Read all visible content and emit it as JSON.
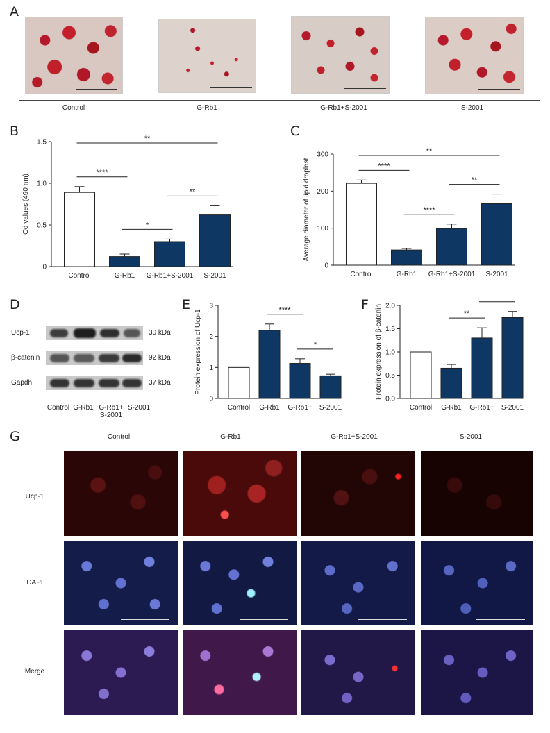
{
  "panel_A": {
    "letter": "A",
    "groups": [
      "Control",
      "G-Rb1",
      "G-Rb1+S-2001",
      "S-2001"
    ],
    "stain_color": "#c0202a"
  },
  "chart_data": [
    {
      "panel": "B",
      "type": "bar",
      "categories": [
        "Control",
        "G-Rb1",
        "G-Rb1+S-2001",
        "S-2001"
      ],
      "values": [
        0.89,
        0.12,
        0.3,
        0.62
      ],
      "errors": [
        0.07,
        0.03,
        0.03,
        0.11
      ],
      "fills": [
        "#ffffff",
        "#0f3763",
        "#0f3763",
        "#0f3763"
      ],
      "ylabel": "Od values (490 nm)",
      "ylim": [
        0,
        1.5
      ],
      "yticks": [
        "0",
        "0.5",
        "1.0",
        "1.5"
      ],
      "annotations": [
        {
          "text": "**",
          "from": 0,
          "to": 3
        },
        {
          "text": "****",
          "from": 0,
          "to": 1
        },
        {
          "text": "*",
          "from": 1,
          "to": 2
        },
        {
          "text": "**",
          "from": 2,
          "to": 3
        }
      ]
    },
    {
      "panel": "C",
      "type": "bar",
      "categories": [
        "Control",
        "G-Rb1",
        "G-Rb1+S-2001",
        "S-2001"
      ],
      "values": [
        221,
        41,
        99,
        166
      ],
      "errors": [
        9,
        4,
        12,
        26
      ],
      "fills": [
        "#ffffff",
        "#0f3763",
        "#0f3763",
        "#0f3763"
      ],
      "ylabel": "Average diameter of lipid droplest",
      "ylim": [
        0,
        300
      ],
      "yticks": [
        "0",
        "100",
        "200",
        "300"
      ],
      "annotations": [
        {
          "text": "**",
          "from": 0,
          "to": 3
        },
        {
          "text": "****",
          "from": 0,
          "to": 1
        },
        {
          "text": "****",
          "from": 1,
          "to": 2
        },
        {
          "text": "**",
          "from": 2,
          "to": 3
        }
      ]
    },
    {
      "panel": "E",
      "type": "bar",
      "categories": [
        "Control",
        "G-Rb1",
        "G-Rb1+\nS-2001",
        "S-2001"
      ],
      "values": [
        1.0,
        2.2,
        1.13,
        0.73
      ],
      "errors": [
        0,
        0.2,
        0.15,
        0.05
      ],
      "fills": [
        "#ffffff",
        "#0f3763",
        "#0f3763",
        "#0f3763"
      ],
      "ylabel": "Protein expression of Ucp-1",
      "ylim": [
        0,
        3
      ],
      "yticks": [
        "0",
        "1",
        "2",
        "3"
      ],
      "annotations": [
        {
          "text": "****",
          "from": 1,
          "to": 2
        },
        {
          "text": "*",
          "from": 2,
          "to": 3
        }
      ]
    },
    {
      "panel": "F",
      "type": "bar",
      "categories": [
        "Control",
        "G-Rb1",
        "G-Rb1+\nS-2001",
        "S-2001"
      ],
      "values": [
        1.0,
        0.65,
        1.3,
        1.74
      ],
      "errors": [
        0,
        0.08,
        0.22,
        0.13
      ],
      "fills": [
        "#ffffff",
        "#0f3763",
        "#0f3763",
        "#0f3763"
      ],
      "ylabel": "Protein expression of β-catenin",
      "ylim": [
        0,
        2.0
      ],
      "yticks": [
        "0.0",
        "0.5",
        "1.0",
        "1.5",
        "2.0"
      ],
      "annotations": [
        {
          "text": "**",
          "from": 1,
          "to": 2
        },
        {
          "text": "*",
          "from": 2,
          "to": 3
        }
      ]
    }
  ],
  "panel_D": {
    "letter": "D",
    "rows": [
      {
        "protein": "Ucp-1",
        "kda": "30 kDa"
      },
      {
        "protein": "β-catenin",
        "kda": "92 kDa"
      },
      {
        "protein": "Gapdh",
        "kda": "37 kDa"
      }
    ],
    "lanes": [
      "Control",
      "G-Rb1",
      "G-Rb1+\nS-2001",
      "S-2001"
    ]
  },
  "panel_G": {
    "letter": "G",
    "columns": [
      "Control",
      "G-Rb1",
      "G-Rb1+S-2001",
      "S-2001"
    ],
    "rows": [
      "Ucp-1",
      "DAPI",
      "Merge"
    ],
    "colors": {
      "ucp1": "#7a1010",
      "dapi": "#2a3b8f",
      "merge": "#3b2a7a"
    }
  }
}
